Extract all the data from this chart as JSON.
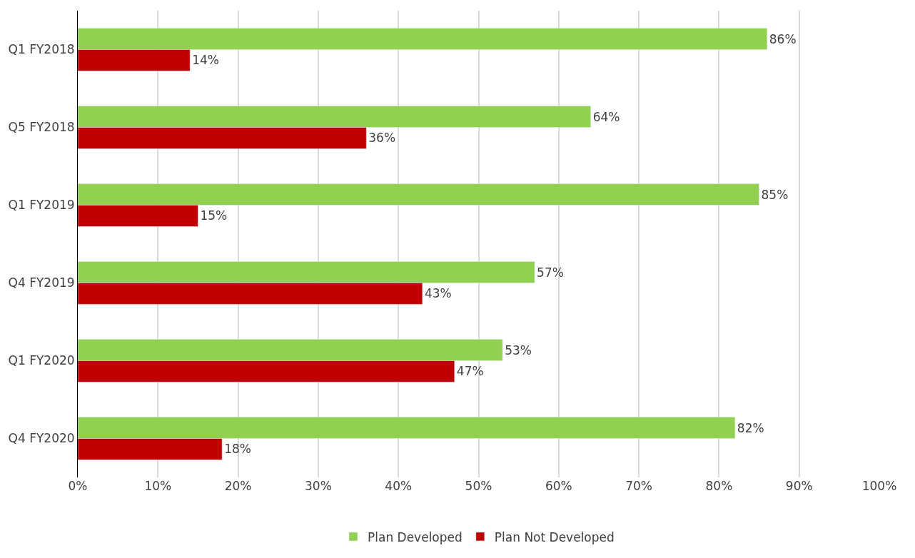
{
  "chart_data": {
    "type": "bar",
    "orientation": "horizontal",
    "categories": [
      "Q1 FY2018",
      "Q5 FY2018",
      "Q1 FY2019",
      "Q4 FY2019",
      "Q1 FY2020",
      "Q4 FY2020"
    ],
    "series": [
      {
        "name": "Plan Developed",
        "color": "#92d050",
        "values": [
          86,
          64,
          85,
          57,
          53,
          82
        ],
        "value_labels": [
          "86%",
          "64%",
          "85%",
          "57%",
          "53%",
          "82%"
        ]
      },
      {
        "name": "Plan Not Developed",
        "color": "#c00000",
        "values": [
          14,
          36,
          15,
          43,
          47,
          18
        ],
        "value_labels": [
          "14%",
          "36%",
          "15%",
          "43%",
          "47%",
          "18%"
        ]
      }
    ],
    "xlim": [
      0,
      100
    ],
    "xticks": [
      {
        "value": 0,
        "label": "0%"
      },
      {
        "value": 10,
        "label": "10%"
      },
      {
        "value": 20,
        "label": "20%"
      },
      {
        "value": 30,
        "label": "30%"
      },
      {
        "value": 40,
        "label": "40%"
      },
      {
        "value": 50,
        "label": "50%"
      },
      {
        "value": 60,
        "label": "60%"
      },
      {
        "value": 70,
        "label": "70%"
      },
      {
        "value": 80,
        "label": "80%"
      },
      {
        "value": 90,
        "label": "90%"
      },
      {
        "value": 100,
        "label": "100%"
      }
    ],
    "grid": "x",
    "legend": "bottom"
  }
}
